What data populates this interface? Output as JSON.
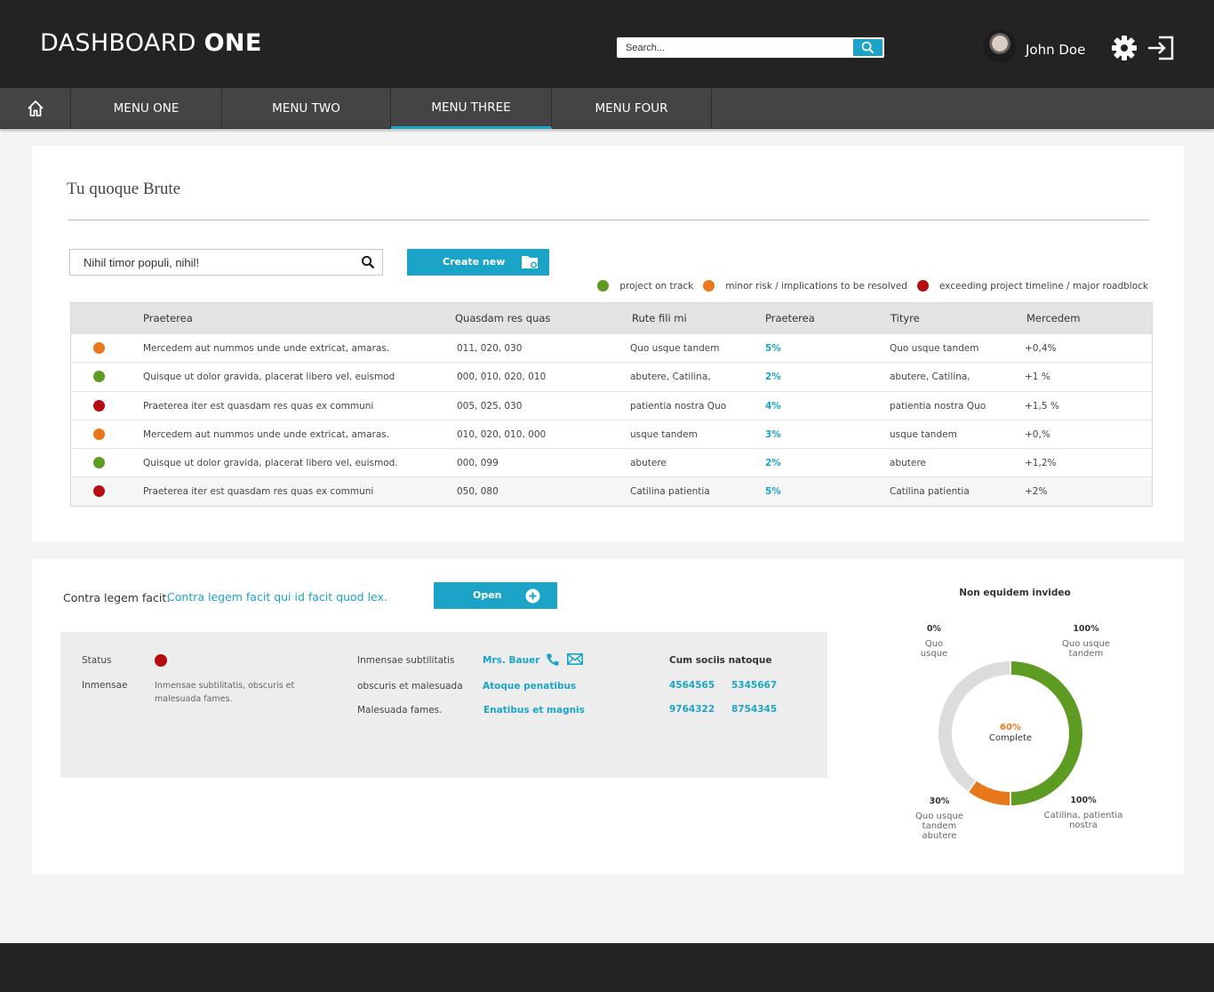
{
  "header": {
    "brand_light": "DASHBOARD",
    "brand_bold": "ONE",
    "search_placeholder": "Search...",
    "user_name": "John Doe"
  },
  "nav": {
    "items": [
      {
        "label": "MENU ONE"
      },
      {
        "label": "MENU TWO"
      },
      {
        "label": "MENU THREE",
        "active": true
      },
      {
        "label": "MENU FOUR"
      }
    ]
  },
  "colors": {
    "accent": "#1ba4c7",
    "on_track": "#5e9b22",
    "minor_risk": "#e8781b",
    "major": "#b50d12",
    "header_bg": "#232323",
    "nav_bg": "#444444"
  },
  "section1": {
    "title": "Tu quoque Brute",
    "filter_value": "Nihil timor populi, nihil!",
    "create_label": "Create new",
    "legend": [
      {
        "label": "project on track",
        "status": "green"
      },
      {
        "label": "minor risk / implications to be resolved",
        "status": "orange"
      },
      {
        "label": "exceeding project timeline / major roadblock",
        "status": "red"
      }
    ],
    "columns": [
      "Praeterea",
      "Quasdam res quas",
      "Rute fili mi",
      "Praeterea",
      "Tityre",
      "Mercedem"
    ],
    "rows": [
      {
        "status": "orange",
        "c1": "Mercedem aut nummos unde unde extricat, amaras.",
        "c2": "011, 020, 030",
        "c3": "Quo usque tandem",
        "c4": "5%",
        "c5": "Quo usque tandem",
        "c6": "+0,4%"
      },
      {
        "status": "green",
        "c1": "Quisque ut dolor gravida, placerat libero vel, euismod",
        "c2": "000, 010, 020, 010",
        "c3": "abutere, Catilina,",
        "c4": "2%",
        "c5": "abutere, Catilina,",
        "c6": "+1 %"
      },
      {
        "status": "red",
        "c1": "Praeterea iter est quasdam res quas ex communi",
        "c2": "005, 025, 030",
        "c3": "patientia nostra Quo",
        "c4": "4%",
        "c5": "patientia nostra Quo",
        "c6": "+1,5 %"
      },
      {
        "status": "orange",
        "c1": "Mercedem aut nummos unde unde extricat, amaras.",
        "c2": "010, 020, 010, 000",
        "c3": "usque tandem",
        "c4": "3%",
        "c5": "usque tandem",
        "c6": "+0,%"
      },
      {
        "status": "green",
        "c1": "Quisque ut dolor gravida, placerat libero vel, euismod.",
        "c2": "000, 099",
        "c3": "abutere",
        "c4": "2%",
        "c5": "abutere",
        "c6": "+1,2%"
      },
      {
        "status": "red",
        "c1": "Praeterea iter est quasdam res quas ex communi",
        "c2": "050, 080",
        "c3": "Catilina patientia",
        "c4": "5%",
        "c5": "Catilina patientia",
        "c6": "+2%"
      }
    ]
  },
  "section2": {
    "label": "Contra legem facit:",
    "link": "Contra legem facit qui id facit quod lex.",
    "open_label": "Open",
    "status_label": "Status",
    "status": "red",
    "inmensae_label": "Inmensae",
    "inmensae_text": "Inmensae subtilitatis, obscuris et malesuada fames.",
    "mid_labels": [
      "Inmensae subtilitatis",
      "obscuris et malesuada",
      "Malesuada fames."
    ],
    "mid_values": [
      "Mrs. Bauer",
      "Atoque penatibus",
      "Enatibus et magnis"
    ],
    "right_title": "Cum sociis natoque",
    "numbers": [
      "4564565",
      "5345667",
      "9764322",
      "8754345"
    ],
    "chart_title": "Non equidem invideo",
    "chart_center_value": "60%",
    "chart_center_label": "Complete",
    "chart_labels": [
      {
        "pct": "0%",
        "text": "Quo usque"
      },
      {
        "pct": "100%",
        "text": "Quo usque tandem"
      },
      {
        "pct": "30%",
        "text": "Quo usque tandem abutere"
      },
      {
        "pct": "100%",
        "text": "Catilina, patientia nostra"
      }
    ]
  },
  "chart_data": {
    "type": "pie",
    "title": "Non equidem invideo",
    "categories": [
      "complete (green)",
      "orange segment",
      "remaining (gray)"
    ],
    "values": [
      50,
      10,
      40
    ],
    "center_value": "60%",
    "center_label": "Complete"
  }
}
